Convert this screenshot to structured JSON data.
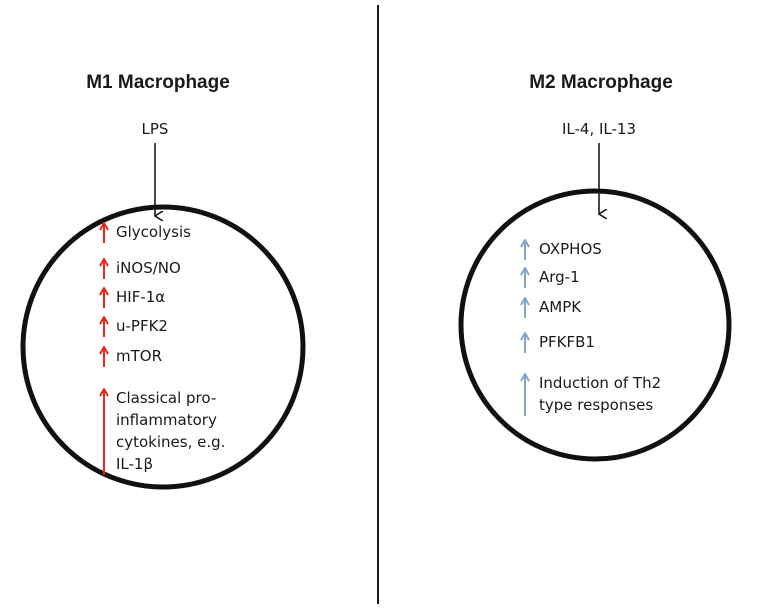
{
  "colors": {
    "m1_arrow": "#e8261c",
    "m2_arrow": "#7ea6d4",
    "line": "#1a1a1a"
  },
  "m1": {
    "title": "M1 Macrophage",
    "stimulus": "LPS",
    "items": [
      {
        "lines": [
          "Glycolysis"
        ]
      },
      {
        "lines": [
          "iNOS/NO"
        ]
      },
      {
        "lines": [
          "HIF-1α"
        ]
      },
      {
        "lines": [
          "u-PFK2"
        ]
      },
      {
        "lines": [
          "mTOR"
        ]
      },
      {
        "lines": [
          "Classical pro-",
          "inflammatory",
          "cytokines, e.g.",
          "IL-1β"
        ]
      }
    ]
  },
  "m2": {
    "title": "M2 Macrophage",
    "stimulus": "IL-4, IL-13",
    "items": [
      {
        "lines": [
          "OXPHOS"
        ]
      },
      {
        "lines": [
          "Arg-1"
        ]
      },
      {
        "lines": [
          "AMPK"
        ]
      },
      {
        "lines": [
          "PFKFB1"
        ]
      },
      {
        "lines": [
          "Induction of Th2",
          "type responses"
        ]
      }
    ]
  }
}
